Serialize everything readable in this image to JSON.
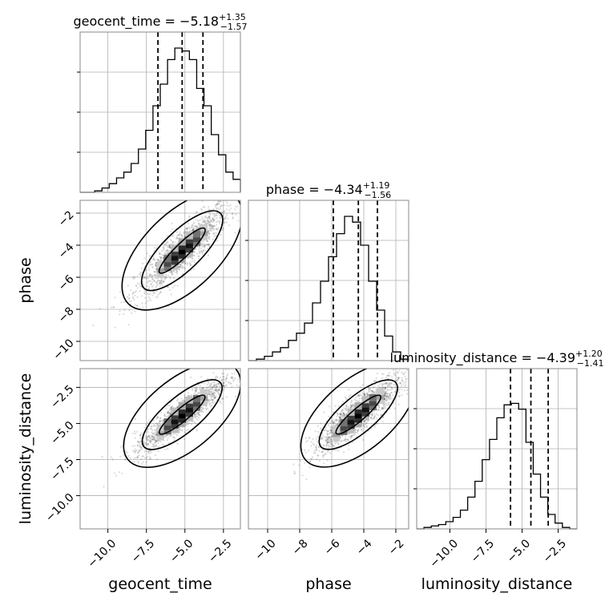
{
  "chart_data": {
    "type": "corner",
    "parameters": [
      "geocent_time",
      "phase",
      "luminosity_distance"
    ],
    "titles": [
      {
        "param": "geocent_time",
        "label": "geocent_time = ",
        "median": "−5.18",
        "plus": "+1.35",
        "minus": "−1.57"
      },
      {
        "param": "phase",
        "label": "phase = ",
        "median": "−4.34",
        "plus": "+1.19",
        "minus": "−1.56"
      },
      {
        "param": "luminosity_distance",
        "label": "luminosity_distance = ",
        "median": "−4.39",
        "plus": "+1.20",
        "minus": "−1.41"
      }
    ],
    "ranges": {
      "geocent_time": [
        -11.8,
        -1.4
      ],
      "phase": [
        -11.2,
        -1.2
      ],
      "luminosity_distance": [
        -12.3,
        -1.2
      ]
    },
    "ticks": {
      "geocent_time": [
        -10.0,
        -7.5,
        -5.0,
        -2.5
      ],
      "phase": [
        -10,
        -8,
        -6,
        -4,
        -2
      ],
      "luminosity_distance": [
        -10.0,
        -7.5,
        -5.0,
        -2.5
      ]
    },
    "tick_labels": {
      "geocent_time": [
        "−10.0",
        "−7.5",
        "−5.0",
        "−2.5"
      ],
      "phase": [
        "−10",
        "−8",
        "−6",
        "−4",
        "−2"
      ],
      "luminosity_distance": [
        "−10.0",
        "−7.5",
        "−5.0",
        "−2.5"
      ]
    },
    "quantiles": {
      "geocent_time": [
        -6.75,
        -5.18,
        -3.83
      ],
      "phase": [
        -5.9,
        -4.34,
        -3.15
      ],
      "luminosity_distance": [
        -5.8,
        -4.39,
        -3.19
      ]
    },
    "histograms": {
      "geocent_time": [
        0.0,
        0.0,
        0.01,
        0.03,
        0.06,
        0.1,
        0.14,
        0.2,
        0.3,
        0.43,
        0.6,
        0.75,
        0.92,
        1.0,
        0.98,
        0.92,
        0.72,
        0.6,
        0.4,
        0.26,
        0.14,
        0.09
      ],
      "phase": [
        0.0,
        0.01,
        0.03,
        0.06,
        0.09,
        0.14,
        0.19,
        0.26,
        0.4,
        0.55,
        0.72,
        0.88,
        1.0,
        0.96,
        0.8,
        0.55,
        0.35,
        0.17,
        0.06,
        0.01
      ],
      "luminosity_distance": [
        0.0,
        0.01,
        0.02,
        0.03,
        0.05,
        0.08,
        0.13,
        0.22,
        0.33,
        0.48,
        0.62,
        0.77,
        0.86,
        0.87,
        0.83,
        0.6,
        0.38,
        0.22,
        0.1,
        0.04,
        0.01,
        0.0
      ]
    },
    "grid": true
  }
}
